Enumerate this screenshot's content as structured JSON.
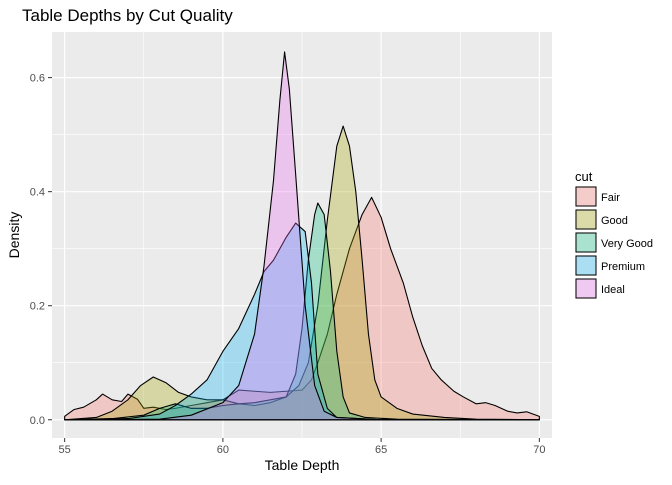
{
  "chart_data": {
    "type": "area",
    "title": "Table Depths by Cut Quality",
    "xlabel": "Table Depth",
    "ylabel": "Density",
    "xlim": [
      54.6,
      70.4
    ],
    "ylim": [
      -0.032,
      0.68
    ],
    "x_ticks": [
      55,
      60,
      65,
      70
    ],
    "y_ticks": [
      0.0,
      0.2,
      0.4,
      0.6
    ],
    "y_tick_labels": [
      "0.0",
      "0.2",
      "0.4",
      "0.6"
    ],
    "grid": true,
    "legend": {
      "title": "cut",
      "placement": "right",
      "entries": [
        "Fair",
        "Good",
        "Very Good",
        "Premium",
        "Ideal"
      ]
    },
    "series": [
      {
        "name": "Fair",
        "color": "#F8766D",
        "points": [
          [
            55.0,
            0.006
          ],
          [
            55.3,
            0.018
          ],
          [
            55.6,
            0.022
          ],
          [
            56.0,
            0.035
          ],
          [
            56.2,
            0.045
          ],
          [
            56.5,
            0.035
          ],
          [
            56.8,
            0.032
          ],
          [
            57.0,
            0.045
          ],
          [
            57.3,
            0.036
          ],
          [
            57.5,
            0.02
          ],
          [
            57.8,
            0.022
          ],
          [
            58.2,
            0.018
          ],
          [
            58.5,
            0.02
          ],
          [
            59.0,
            0.025
          ],
          [
            59.5,
            0.03
          ],
          [
            60.0,
            0.035
          ],
          [
            60.5,
            0.052
          ],
          [
            61.0,
            0.05
          ],
          [
            61.5,
            0.048
          ],
          [
            62.0,
            0.05
          ],
          [
            62.5,
            0.052
          ],
          [
            62.8,
            0.07
          ],
          [
            63.0,
            0.1
          ],
          [
            63.3,
            0.15
          ],
          [
            63.6,
            0.22
          ],
          [
            64.0,
            0.3
          ],
          [
            64.4,
            0.36
          ],
          [
            64.7,
            0.39
          ],
          [
            65.0,
            0.355
          ],
          [
            65.3,
            0.3
          ],
          [
            65.7,
            0.24
          ],
          [
            66.0,
            0.18
          ],
          [
            66.3,
            0.13
          ],
          [
            66.6,
            0.09
          ],
          [
            66.9,
            0.07
          ],
          [
            67.3,
            0.05
          ],
          [
            67.6,
            0.04
          ],
          [
            68.0,
            0.028
          ],
          [
            68.3,
            0.03
          ],
          [
            68.6,
            0.025
          ],
          [
            69.0,
            0.015
          ],
          [
            69.3,
            0.012
          ],
          [
            69.6,
            0.014
          ],
          [
            70.0,
            0.006
          ]
        ]
      },
      {
        "name": "Good",
        "color": "#A3A500",
        "points": [
          [
            55.0,
            0.0
          ],
          [
            56.0,
            0.004
          ],
          [
            56.5,
            0.015
          ],
          [
            57.0,
            0.035
          ],
          [
            57.4,
            0.06
          ],
          [
            57.8,
            0.075
          ],
          [
            58.2,
            0.065
          ],
          [
            58.6,
            0.048
          ],
          [
            59.0,
            0.04
          ],
          [
            59.5,
            0.035
          ],
          [
            60.0,
            0.035
          ],
          [
            60.5,
            0.028
          ],
          [
            61.0,
            0.025
          ],
          [
            61.5,
            0.03
          ],
          [
            62.0,
            0.04
          ],
          [
            62.4,
            0.06
          ],
          [
            62.7,
            0.1
          ],
          [
            63.0,
            0.2
          ],
          [
            63.3,
            0.35
          ],
          [
            63.6,
            0.48
          ],
          [
            63.8,
            0.515
          ],
          [
            64.0,
            0.48
          ],
          [
            64.2,
            0.4
          ],
          [
            64.4,
            0.28
          ],
          [
            64.6,
            0.15
          ],
          [
            64.8,
            0.07
          ],
          [
            65.0,
            0.04
          ],
          [
            65.5,
            0.02
          ],
          [
            66.0,
            0.01
          ],
          [
            67.0,
            0.004
          ],
          [
            68.0,
            0.001
          ],
          [
            70.0,
            0.0
          ]
        ]
      },
      {
        "name": "Very Good",
        "color": "#00BF7D",
        "points": [
          [
            55.0,
            0.0
          ],
          [
            56.5,
            0.002
          ],
          [
            57.5,
            0.008
          ],
          [
            58.0,
            0.02
          ],
          [
            58.5,
            0.028
          ],
          [
            59.0,
            0.02
          ],
          [
            59.5,
            0.02
          ],
          [
            60.0,
            0.025
          ],
          [
            60.5,
            0.028
          ],
          [
            61.0,
            0.03
          ],
          [
            61.5,
            0.035
          ],
          [
            62.0,
            0.04
          ],
          [
            62.3,
            0.08
          ],
          [
            62.5,
            0.16
          ],
          [
            62.7,
            0.28
          ],
          [
            62.9,
            0.36
          ],
          [
            63.0,
            0.38
          ],
          [
            63.2,
            0.36
          ],
          [
            63.4,
            0.26
          ],
          [
            63.6,
            0.12
          ],
          [
            63.8,
            0.04
          ],
          [
            64.0,
            0.012
          ],
          [
            64.5,
            0.004
          ],
          [
            65.5,
            0.001
          ],
          [
            70.0,
            0.0
          ]
        ]
      },
      {
        "name": "Premium",
        "color": "#00B0F6",
        "points": [
          [
            55.0,
            0.0
          ],
          [
            57.0,
            0.002
          ],
          [
            58.0,
            0.01
          ],
          [
            58.5,
            0.025
          ],
          [
            59.0,
            0.045
          ],
          [
            59.5,
            0.07
          ],
          [
            59.8,
            0.1
          ],
          [
            60.0,
            0.12
          ],
          [
            60.5,
            0.16
          ],
          [
            61.0,
            0.22
          ],
          [
            61.3,
            0.26
          ],
          [
            61.6,
            0.28
          ],
          [
            62.0,
            0.32
          ],
          [
            62.3,
            0.345
          ],
          [
            62.6,
            0.33
          ],
          [
            62.8,
            0.24
          ],
          [
            63.0,
            0.08
          ],
          [
            63.3,
            0.02
          ],
          [
            63.6,
            0.004
          ],
          [
            65.0,
            0.0
          ],
          [
            70.0,
            0.0
          ]
        ]
      },
      {
        "name": "Ideal",
        "color": "#E76BF3",
        "points": [
          [
            55.0,
            0.0
          ],
          [
            58.0,
            0.001
          ],
          [
            59.0,
            0.008
          ],
          [
            60.0,
            0.03
          ],
          [
            60.5,
            0.06
          ],
          [
            61.0,
            0.15
          ],
          [
            61.3,
            0.27
          ],
          [
            61.6,
            0.42
          ],
          [
            61.8,
            0.56
          ],
          [
            61.95,
            0.645
          ],
          [
            62.1,
            0.58
          ],
          [
            62.3,
            0.43
          ],
          [
            62.6,
            0.2
          ],
          [
            62.9,
            0.06
          ],
          [
            63.2,
            0.015
          ],
          [
            63.6,
            0.004
          ],
          [
            65.0,
            0.0
          ],
          [
            70.0,
            0.0
          ]
        ]
      }
    ]
  }
}
